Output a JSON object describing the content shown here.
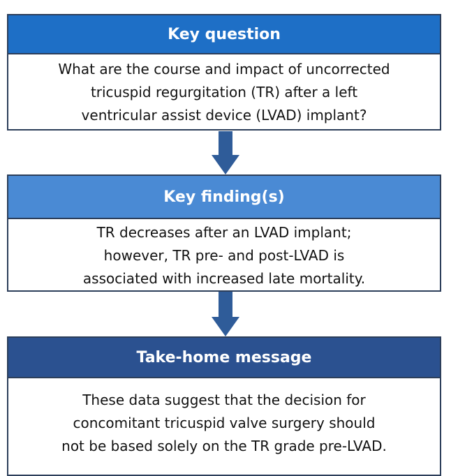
{
  "boxes": [
    {
      "title": "Key question",
      "lines": [
        "What are the course and impact of uncorrected",
        "tricuspid regurgitation (TR) after a left",
        "ventricular assist device (LVAD) implant?"
      ]
    },
    {
      "title": "Key finding(s)",
      "lines": [
        "TR decreases after an LVAD implant;",
        "however, TR pre- and post-LVAD is",
        "associated with increased late mortality."
      ]
    },
    {
      "title": "Take-home message",
      "lines": [
        "These data suggest that the decision for",
        "concomitant tricuspid valve surgery should",
        "not be based solely on the TR grade pre-LVAD."
      ]
    }
  ]
}
